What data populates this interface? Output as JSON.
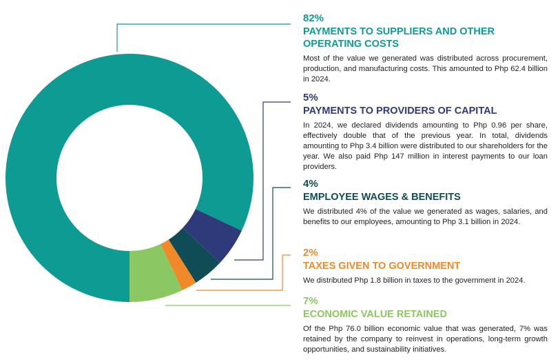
{
  "chart_data": {
    "type": "pie",
    "categories": [
      "PAYMENTS TO SUPPLIERS AND OTHER OPERATING COSTS",
      "PAYMENTS TO PROVIDERS OF CAPITAL",
      "EMPLOYEE WAGES & BENEFITS",
      "TAXES GIVEN TO GOVERNMENT",
      "ECONOMIC VALUE RETAINED"
    ],
    "values": [
      82,
      5,
      4,
      2,
      7
    ],
    "value_labels": [
      "82%",
      "5%",
      "4%",
      "2%",
      "7%"
    ],
    "colors": [
      "#0e9b94",
      "#2e3a7a",
      "#0f4c55",
      "#f0892a",
      "#8cc862"
    ],
    "descriptions": [
      "Most of the value we generated was distributed across procurement, production, and manufacturing costs. This amounted to Php 62.4 billion in 2024.",
      "In 2024, we declared dividends amounting to Php 0.96 per share, effectively double that of the previous year. In total, dividends amounting to Php 3.4 billion were distributed to our shareholders for the year. We also paid Php 147 million in interest payments to our loan providers.",
      "We distributed 4% of the value we generated as wages, salaries, and benefits to our employees, amounting to Php 3.1 billion in 2024.",
      "We distributed Php 1.8 billion in taxes to the government in 2024.",
      "Of the Php 76.0 billion economic value that was generated, 7% was retained by the company to reinvest in operations, long-term growth opportunities, and sustainability initiatives."
    ]
  }
}
